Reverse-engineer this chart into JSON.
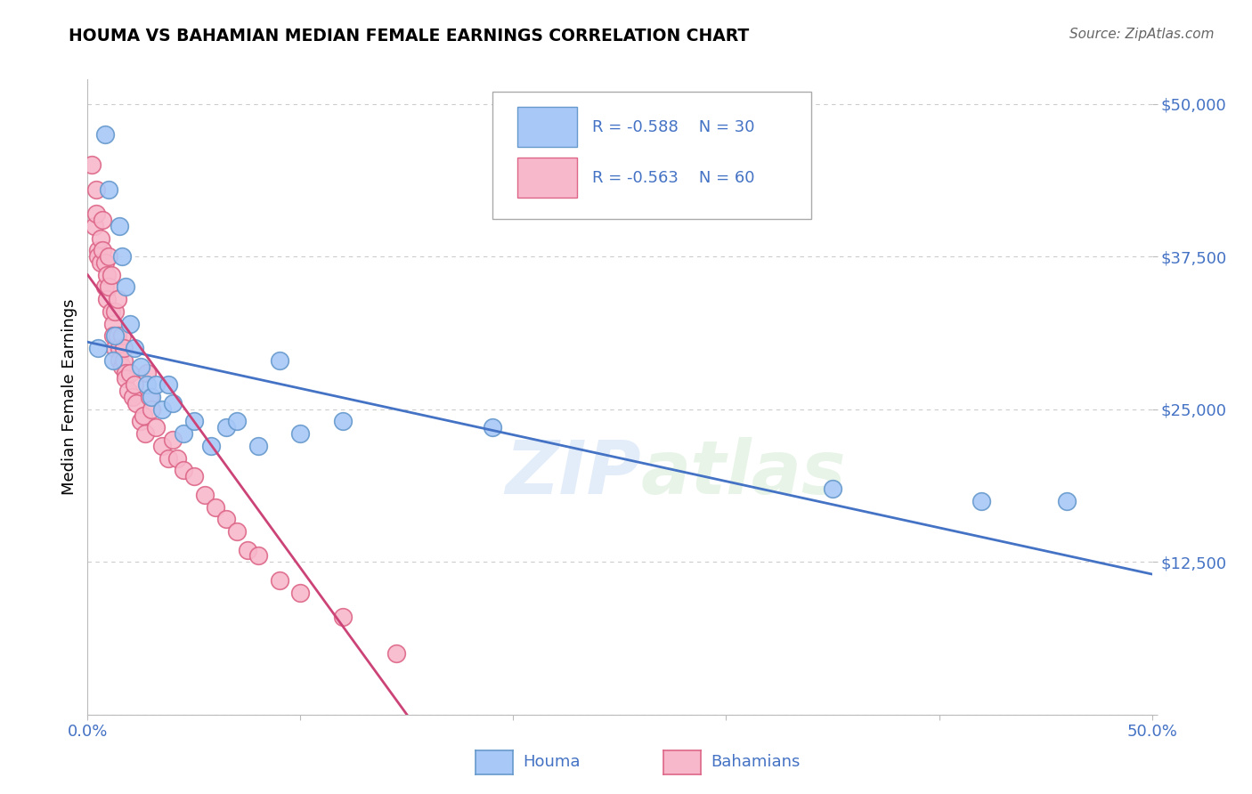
{
  "title": "HOUMA VS BAHAMIAN MEDIAN FEMALE EARNINGS CORRELATION CHART",
  "source": "Source: ZipAtlas.com",
  "ylabel": "Median Female Earnings",
  "watermark": "ZIPatlas",
  "xlim": [
    0.0,
    0.5
  ],
  "ylim": [
    0,
    52000
  ],
  "yticks": [
    0,
    12500,
    25000,
    37500,
    50000
  ],
  "ytick_labels": [
    "",
    "$12,500",
    "$25,000",
    "$37,500",
    "$50,000"
  ],
  "xticks": [
    0.0,
    0.1,
    0.2,
    0.3,
    0.4,
    0.5
  ],
  "xtick_labels": [
    "0.0%",
    "",
    "",
    "",
    "",
    "50.0%"
  ],
  "houma_R": -0.588,
  "houma_N": 30,
  "bahamian_R": -0.563,
  "bahamian_N": 60,
  "houma_color": "#a8c8f8",
  "houma_edge_color": "#6699cc",
  "bahamian_color": "#f8b8cc",
  "bahamian_edge_color": "#dd6688",
  "houma_line_color": "#4472c4",
  "bahamian_line_color": "#cc4477",
  "title_color": "#000000",
  "source_color": "#666666",
  "axis_label_color": "#000000",
  "ytick_color": "#4472c4",
  "xtick_color": "#4472c4",
  "houma_x": [
    0.005,
    0.008,
    0.01,
    0.012,
    0.013,
    0.015,
    0.016,
    0.018,
    0.02,
    0.022,
    0.025,
    0.028,
    0.03,
    0.032,
    0.035,
    0.038,
    0.04,
    0.045,
    0.05,
    0.058,
    0.065,
    0.07,
    0.08,
    0.09,
    0.1,
    0.12,
    0.19,
    0.35,
    0.42,
    0.46
  ],
  "houma_y": [
    30000,
    47500,
    43000,
    29000,
    31000,
    40000,
    37500,
    35000,
    32000,
    30000,
    28500,
    27000,
    26000,
    27000,
    25000,
    27000,
    25500,
    23000,
    24000,
    22000,
    23500,
    24000,
    22000,
    29000,
    23000,
    24000,
    23500,
    18500,
    17500,
    17500
  ],
  "bahamian_x": [
    0.002,
    0.003,
    0.004,
    0.004,
    0.005,
    0.005,
    0.006,
    0.006,
    0.007,
    0.007,
    0.008,
    0.008,
    0.009,
    0.009,
    0.01,
    0.01,
    0.011,
    0.011,
    0.012,
    0.012,
    0.013,
    0.013,
    0.014,
    0.014,
    0.015,
    0.015,
    0.016,
    0.016,
    0.017,
    0.017,
    0.018,
    0.018,
    0.019,
    0.02,
    0.021,
    0.022,
    0.023,
    0.025,
    0.026,
    0.027,
    0.028,
    0.029,
    0.03,
    0.032,
    0.035,
    0.038,
    0.04,
    0.042,
    0.045,
    0.05,
    0.055,
    0.06,
    0.065,
    0.07,
    0.075,
    0.08,
    0.09,
    0.1,
    0.12,
    0.145
  ],
  "bahamian_y": [
    45000,
    40000,
    43000,
    41000,
    38000,
    37500,
    39000,
    37000,
    40500,
    38000,
    37000,
    35000,
    36000,
    34000,
    37500,
    35000,
    36000,
    33000,
    32000,
    31000,
    33000,
    30000,
    34000,
    31000,
    30000,
    29000,
    31000,
    28500,
    29000,
    30000,
    28000,
    27500,
    26500,
    28000,
    26000,
    27000,
    25500,
    24000,
    24500,
    23000,
    28000,
    26000,
    25000,
    23500,
    22000,
    21000,
    22500,
    21000,
    20000,
    19500,
    18000,
    17000,
    16000,
    15000,
    13500,
    13000,
    11000,
    10000,
    8000,
    5000
  ],
  "houma_line_x": [
    0.0,
    0.5
  ],
  "houma_line_y": [
    30500,
    11500
  ],
  "bahamian_line_x": [
    0.0,
    0.15
  ],
  "bahamian_line_y": [
    36000,
    0
  ],
  "grid_color": "#cccccc",
  "background_color": "#ffffff"
}
